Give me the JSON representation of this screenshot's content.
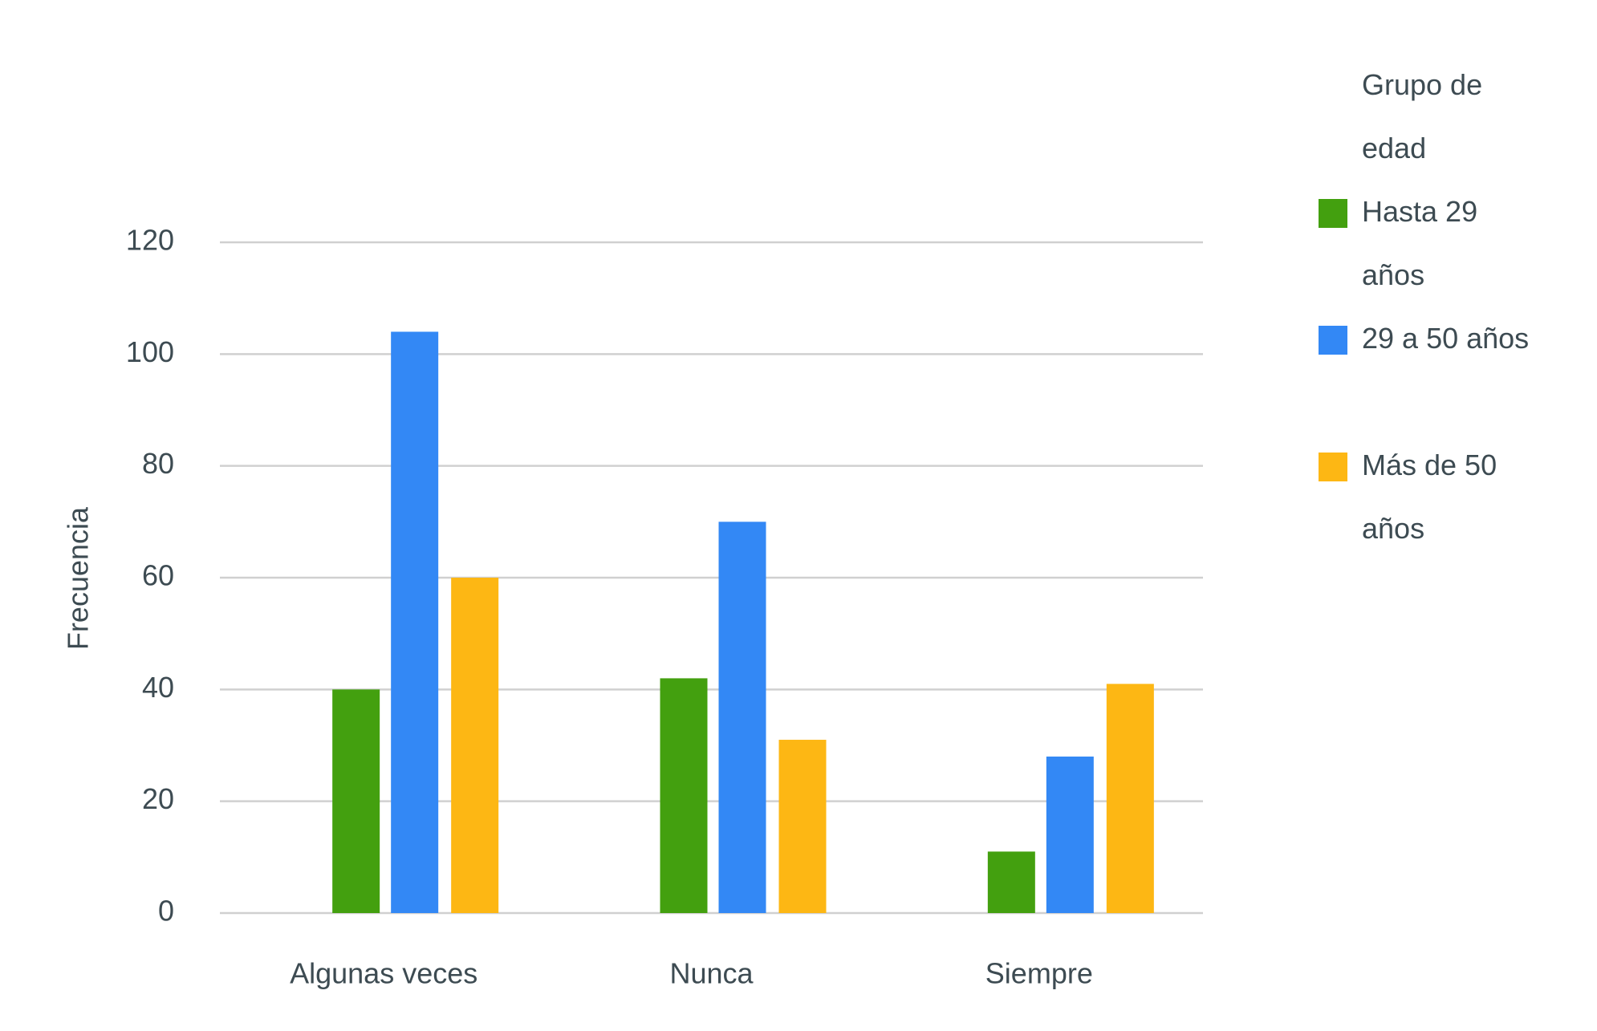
{
  "chart_data": {
    "type": "bar",
    "y_label": "Frecuencia",
    "categories": [
      "Algunas veces",
      "Nunca",
      "Siempre"
    ],
    "series": [
      {
        "name": "Hasta 29 años",
        "color": "#43a00f",
        "values": [
          40,
          42,
          11
        ]
      },
      {
        "name": "29 a 50 años",
        "color": "#3388f5",
        "values": [
          104,
          70,
          28
        ]
      },
      {
        "name": "Más de 50 años",
        "color": "#fdb714",
        "values": [
          60,
          31,
          41
        ]
      }
    ],
    "legend_title": "Grupo de edad",
    "legend_position": "right",
    "ylim": [
      0,
      120
    ],
    "yticks": [
      0,
      20,
      40,
      60,
      80,
      100,
      120
    ],
    "grid": true
  }
}
